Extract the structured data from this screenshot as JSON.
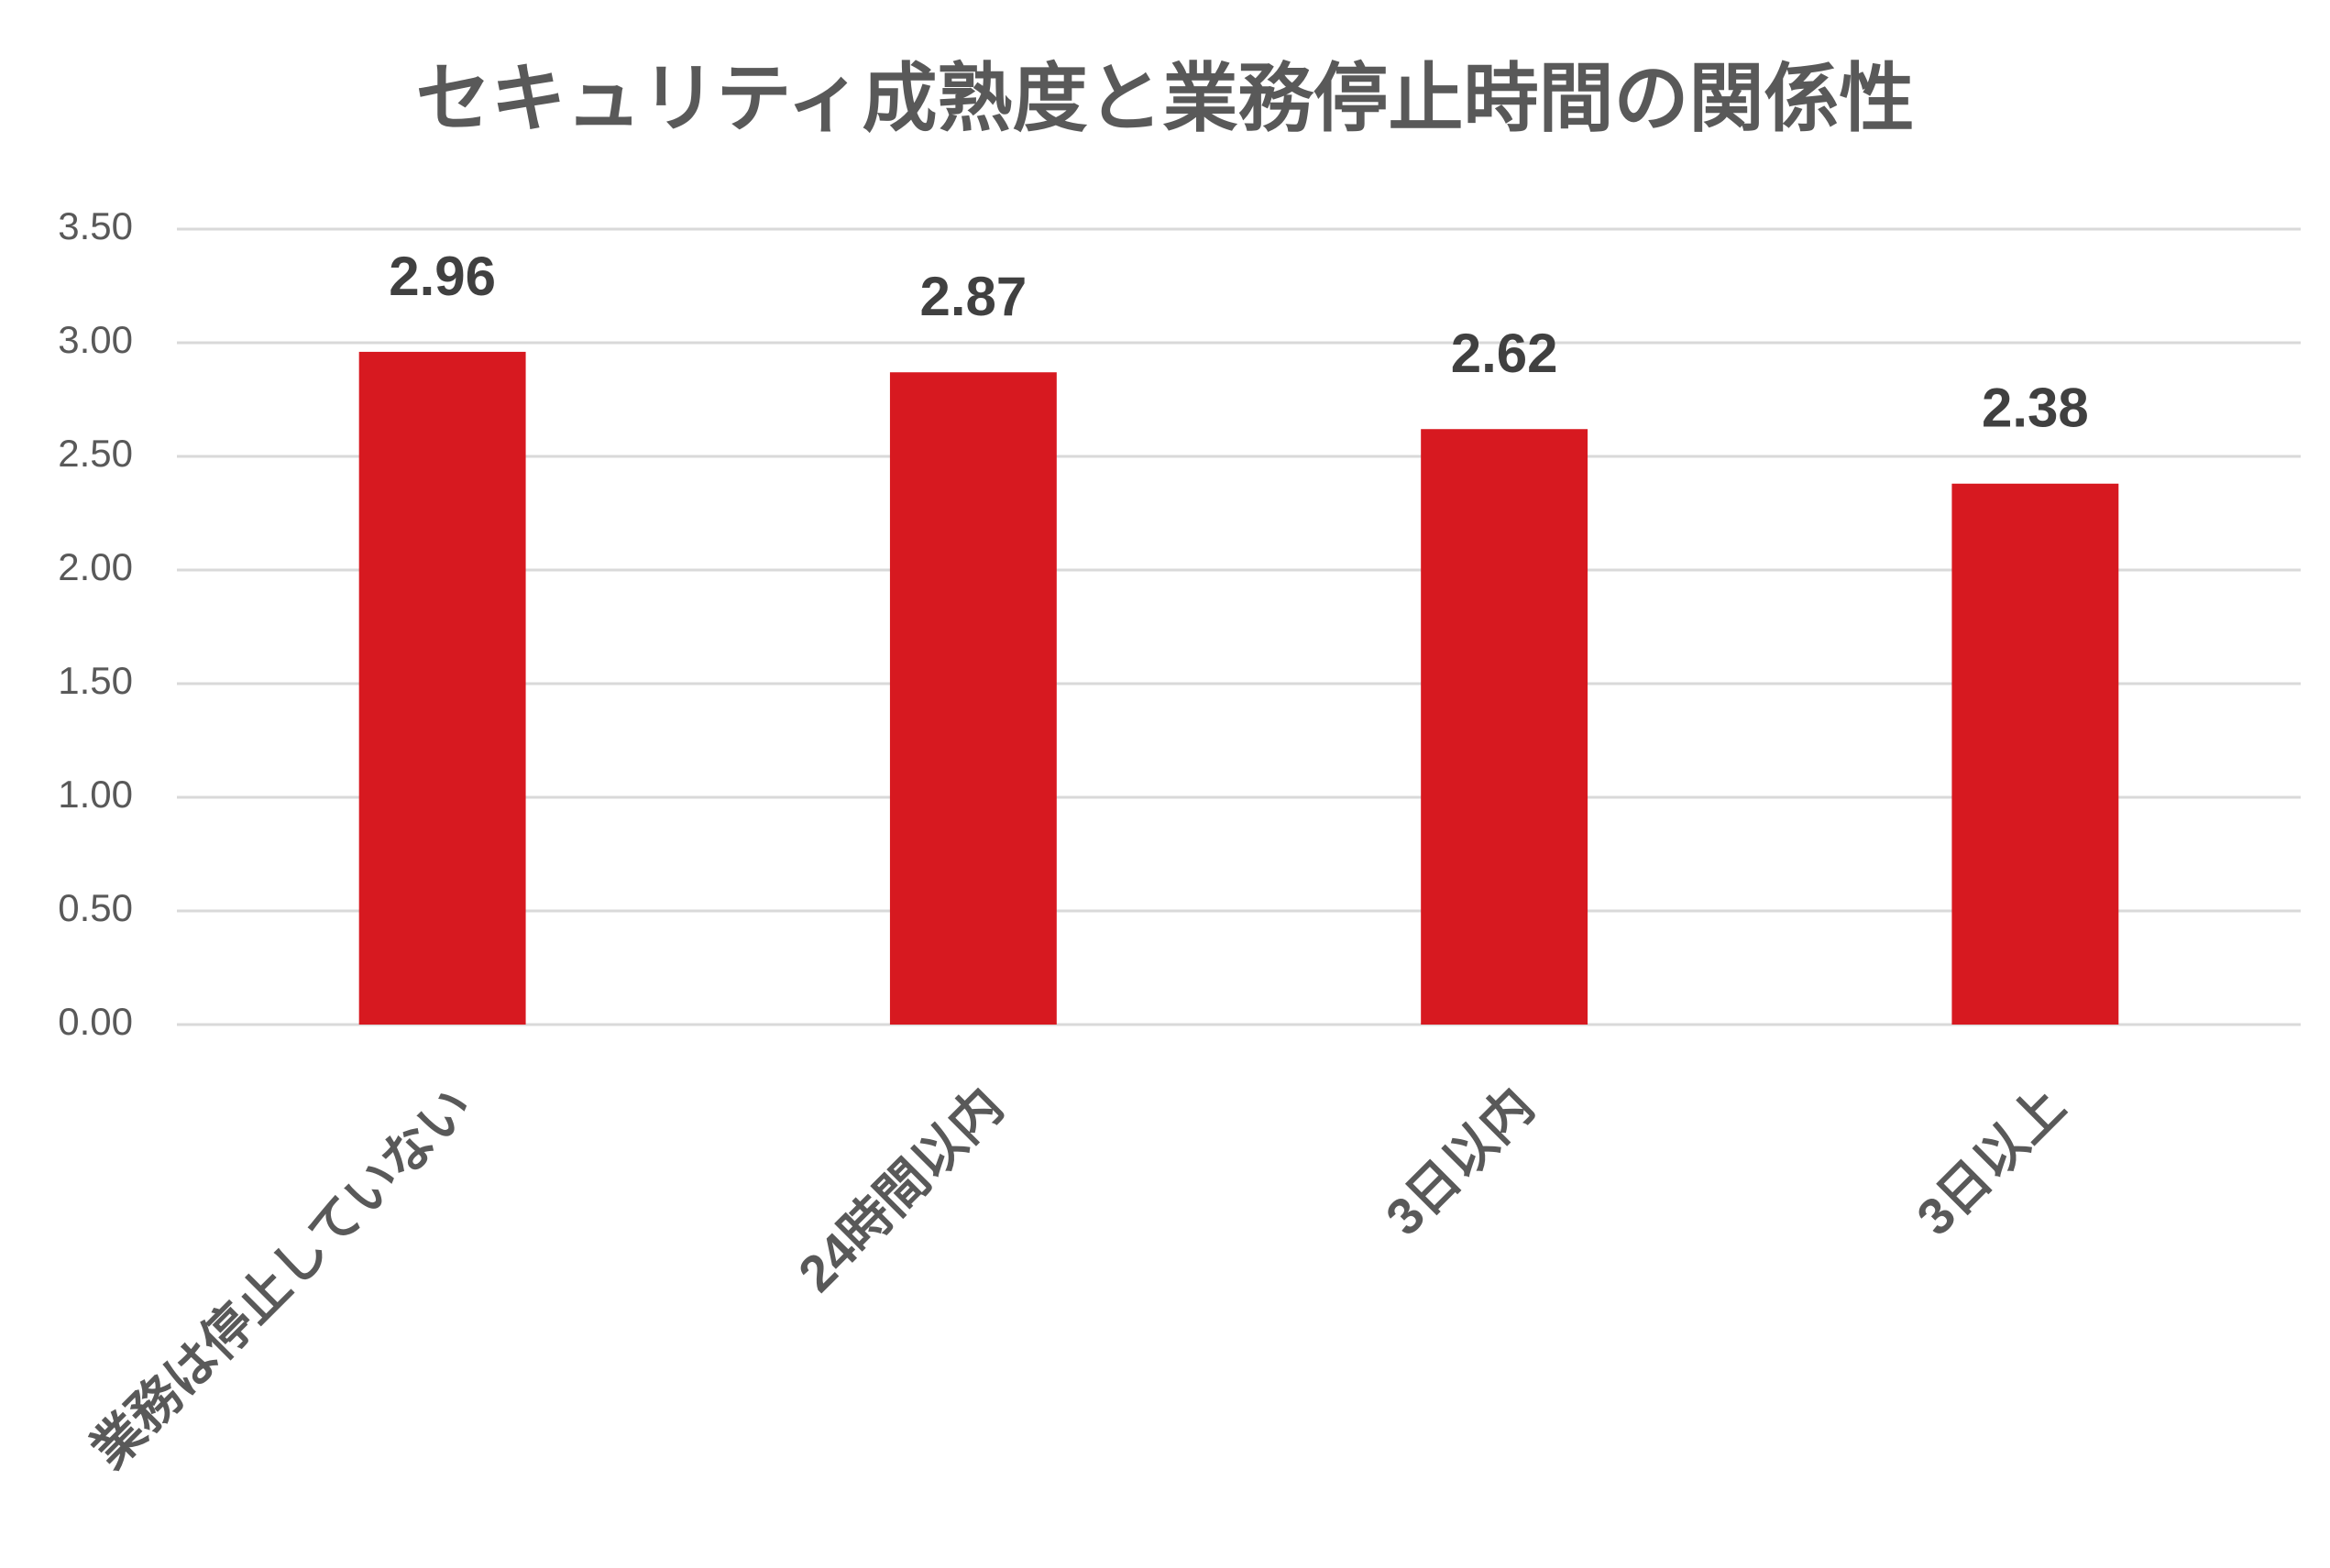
{
  "chart_data": {
    "type": "bar",
    "title": "セキュリティ成熟度と業務停止時間の関係性",
    "categories": [
      "業務は停止していない",
      "24時間以内",
      "3日以内",
      "3日以上"
    ],
    "values": [
      2.96,
      2.87,
      2.62,
      2.38
    ],
    "color": "#d71920",
    "ylim": [
      0,
      3.5
    ],
    "yticks": [
      {
        "value": 0,
        "label": "0.00"
      },
      {
        "value": 0.5,
        "label": "0.50"
      },
      {
        "value": 1,
        "label": "1.00"
      },
      {
        "value": 1.5,
        "label": "1.50"
      },
      {
        "value": 2,
        "label": "2.00"
      },
      {
        "value": 2.5,
        "label": "2.50"
      },
      {
        "value": 3,
        "label": "3.00"
      },
      {
        "value": 3.5,
        "label": "3.50"
      }
    ],
    "grid": true
  }
}
